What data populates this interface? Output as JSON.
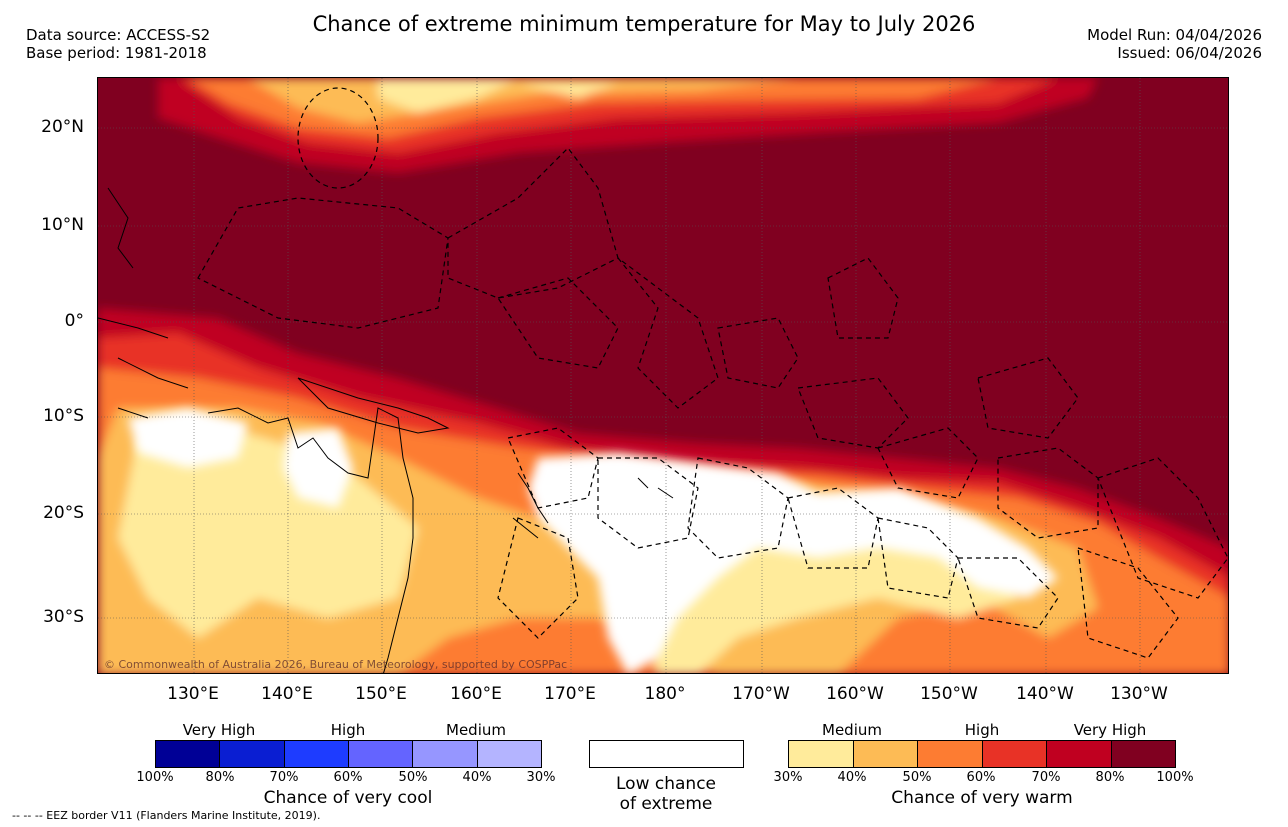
{
  "title": "Chance of extreme minimum temperature for May to July 2026",
  "header": {
    "data_source": "Data source: ACCESS-S2",
    "base_period": "Base period: 1981-2018",
    "model_run": "Model Run: 04/04/2026",
    "issued": "Issued: 06/04/2026"
  },
  "map": {
    "lat_labels": [
      "20°N",
      "10°N",
      "0°",
      "10°S",
      "20°S",
      "30°S"
    ],
    "lon_labels": [
      "130°E",
      "140°E",
      "150°E",
      "160°E",
      "170°E",
      "180°",
      "170°W",
      "160°W",
      "150°W",
      "140°W",
      "130°W"
    ],
    "copyright": "© Commonwealth of Australia 2026, Bureau of Meteorology, supported by COSPPac"
  },
  "legend": {
    "cool": {
      "categories": [
        "Very High",
        "High",
        "Medium"
      ],
      "ticks": [
        "100%",
        "80%",
        "70%",
        "60%",
        "50%",
        "40%",
        "30%"
      ],
      "colors": [
        "#000096",
        "#0a1ed2",
        "#1e3cff",
        "#6464ff",
        "#9696ff",
        "#b4b4ff"
      ],
      "title": "Chance of very cool"
    },
    "low": {
      "line1": "Low chance",
      "line2": "of extreme"
    },
    "warm": {
      "categories": [
        "Medium",
        "High",
        "Very High"
      ],
      "ticks": [
        "30%",
        "40%",
        "50%",
        "60%",
        "70%",
        "80%",
        "100%"
      ],
      "colors": [
        "#ffeb9b",
        "#fdbb55",
        "#fd7c32",
        "#e83226",
        "#c00020",
        "#800020"
      ],
      "title": "Chance of very warm"
    }
  },
  "footer": "--  --  -- EEZ border V11 (Flanders Marine Institute, 2019)."
}
